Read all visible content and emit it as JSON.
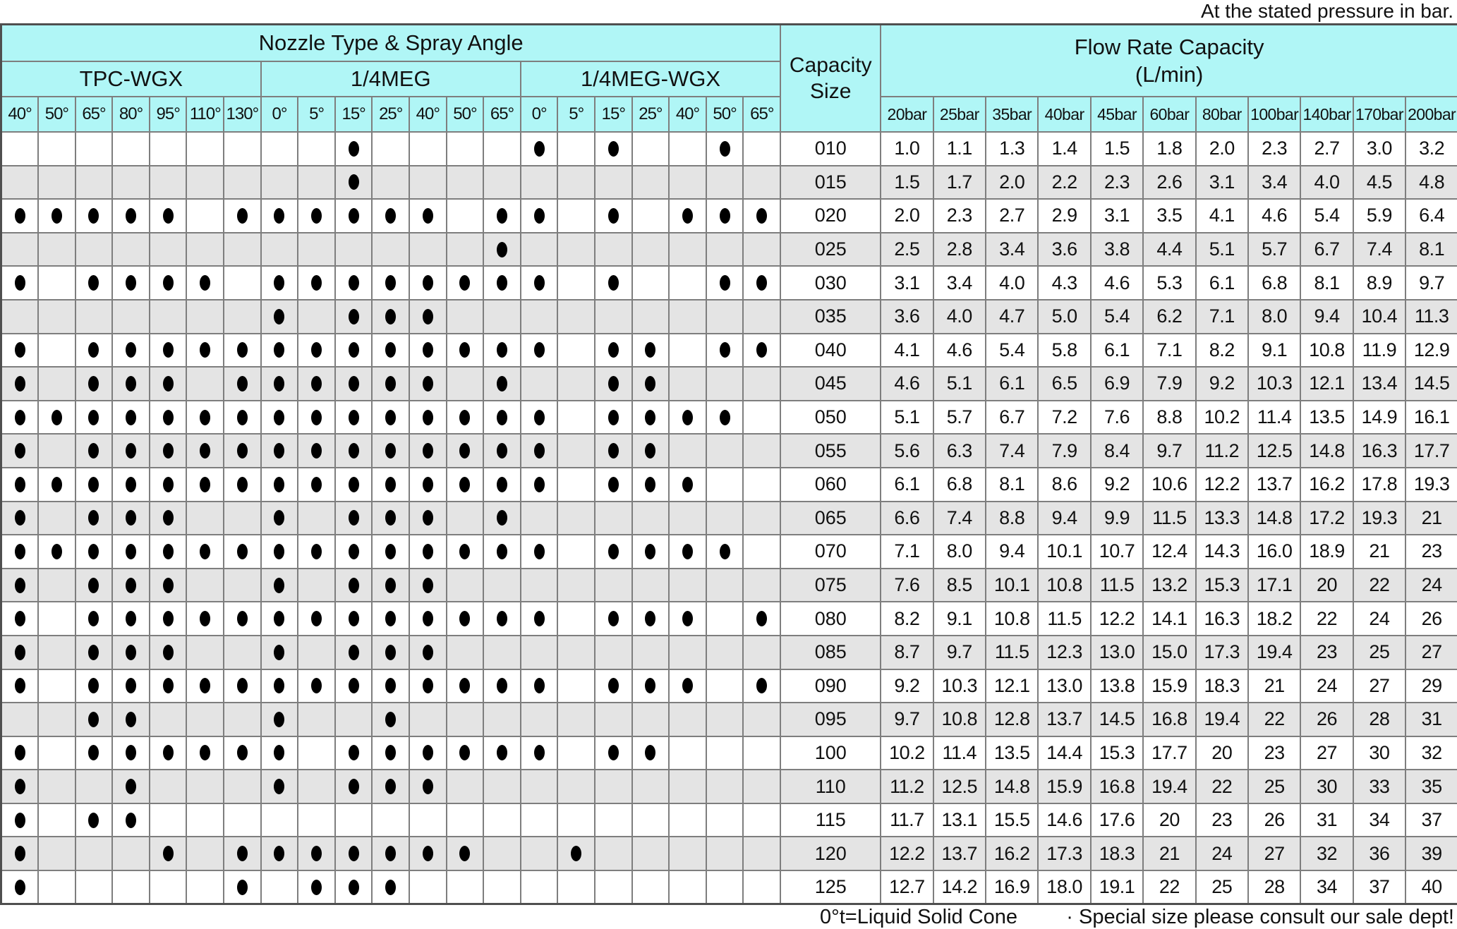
{
  "notes": {
    "top": "At the stated pressure in bar.",
    "left": "0°t=Liquid Solid Cone",
    "right": "· Special size please consult our sale dept!"
  },
  "colors": {
    "header_cyan": "#b0f6f6",
    "row_gray": "#e4e4e4",
    "row_white": "#ffffff",
    "grid_border": "#7e7e7e",
    "outer_border": "#4f4f4f",
    "dot_black": "#000000"
  },
  "table": {
    "nozzle_title": "Nozzle Type  & Spray Angle",
    "capacity_title_line1": "Capacity",
    "capacity_title_line2": "Size",
    "flow_title_line1": "Flow Rate Capacity",
    "flow_title_line2": "(L/min)",
    "groups": [
      {
        "label": "TPC-WGX",
        "angles": [
          "40°",
          "50°",
          "65°",
          "80°",
          "95°",
          "110°",
          "130°"
        ]
      },
      {
        "label": "1/4MEG",
        "angles": [
          "0°",
          "5°",
          "15°",
          "25°",
          "40°",
          "50°",
          "65°"
        ]
      },
      {
        "label": "1/4MEG-WGX",
        "angles": [
          "0°",
          "5°",
          "15°",
          "25°",
          "40°",
          "50°",
          "65°"
        ]
      }
    ],
    "pressures": [
      "20bar",
      "25bar",
      "35bar",
      "40bar",
      "45bar",
      "60bar",
      "80bar",
      "100bar",
      "140bar",
      "170bar",
      "200bar"
    ],
    "rows": [
      {
        "size": "010",
        "dots": [
          0,
          0,
          0,
          0,
          0,
          0,
          0,
          0,
          0,
          1,
          0,
          0,
          0,
          0,
          1,
          0,
          1,
          0,
          0,
          1,
          0
        ],
        "flows": [
          "1.0",
          "1.1",
          "1.3",
          "1.4",
          "1.5",
          "1.8",
          "2.0",
          "2.3",
          "2.7",
          "3.0",
          "3.2"
        ]
      },
      {
        "size": "015",
        "dots": [
          0,
          0,
          0,
          0,
          0,
          0,
          0,
          0,
          0,
          1,
          0,
          0,
          0,
          0,
          0,
          0,
          0,
          0,
          0,
          0,
          0
        ],
        "flows": [
          "1.5",
          "1.7",
          "2.0",
          "2.2",
          "2.3",
          "2.6",
          "3.1",
          "3.4",
          "4.0",
          "4.5",
          "4.8"
        ]
      },
      {
        "size": "020",
        "dots": [
          1,
          1,
          1,
          1,
          1,
          0,
          1,
          1,
          1,
          1,
          1,
          1,
          0,
          1,
          1,
          0,
          1,
          0,
          1,
          1,
          1
        ],
        "flows": [
          "2.0",
          "2.3",
          "2.7",
          "2.9",
          "3.1",
          "3.5",
          "4.1",
          "4.6",
          "5.4",
          "5.9",
          "6.4"
        ]
      },
      {
        "size": "025",
        "dots": [
          0,
          0,
          0,
          0,
          0,
          0,
          0,
          0,
          0,
          0,
          0,
          0,
          0,
          1,
          0,
          0,
          0,
          0,
          0,
          0,
          0
        ],
        "flows": [
          "2.5",
          "2.8",
          "3.4",
          "3.6",
          "3.8",
          "4.4",
          "5.1",
          "5.7",
          "6.7",
          "7.4",
          "8.1"
        ]
      },
      {
        "size": "030",
        "dots": [
          1,
          0,
          1,
          1,
          1,
          1,
          0,
          1,
          1,
          1,
          1,
          1,
          1,
          1,
          1,
          0,
          1,
          0,
          0,
          1,
          1
        ],
        "flows": [
          "3.1",
          "3.4",
          "4.0",
          "4.3",
          "4.6",
          "5.3",
          "6.1",
          "6.8",
          "8.1",
          "8.9",
          "9.7"
        ]
      },
      {
        "size": "035",
        "dots": [
          0,
          0,
          0,
          0,
          0,
          0,
          0,
          1,
          0,
          1,
          1,
          1,
          0,
          0,
          0,
          0,
          0,
          0,
          0,
          0,
          0
        ],
        "flows": [
          "3.6",
          "4.0",
          "4.7",
          "5.0",
          "5.4",
          "6.2",
          "7.1",
          "8.0",
          "9.4",
          "10.4",
          "11.3"
        ]
      },
      {
        "size": "040",
        "dots": [
          1,
          0,
          1,
          1,
          1,
          1,
          1,
          1,
          1,
          1,
          1,
          1,
          1,
          1,
          1,
          0,
          1,
          1,
          0,
          1,
          1
        ],
        "flows": [
          "4.1",
          "4.6",
          "5.4",
          "5.8",
          "6.1",
          "7.1",
          "8.2",
          "9.1",
          "10.8",
          "11.9",
          "12.9"
        ]
      },
      {
        "size": "045",
        "dots": [
          1,
          0,
          1,
          1,
          1,
          0,
          1,
          1,
          1,
          1,
          1,
          1,
          0,
          1,
          0,
          0,
          1,
          1,
          0,
          0,
          0
        ],
        "flows": [
          "4.6",
          "5.1",
          "6.1",
          "6.5",
          "6.9",
          "7.9",
          "9.2",
          "10.3",
          "12.1",
          "13.4",
          "14.5"
        ]
      },
      {
        "size": "050",
        "dots": [
          1,
          1,
          1,
          1,
          1,
          1,
          1,
          1,
          1,
          1,
          1,
          1,
          1,
          1,
          1,
          0,
          1,
          1,
          1,
          1,
          0
        ],
        "flows": [
          "5.1",
          "5.7",
          "6.7",
          "7.2",
          "7.6",
          "8.8",
          "10.2",
          "11.4",
          "13.5",
          "14.9",
          "16.1"
        ]
      },
      {
        "size": "055",
        "dots": [
          1,
          0,
          1,
          1,
          1,
          1,
          1,
          1,
          1,
          1,
          1,
          1,
          1,
          1,
          1,
          0,
          1,
          1,
          0,
          0,
          0
        ],
        "flows": [
          "5.6",
          "6.3",
          "7.4",
          "7.9",
          "8.4",
          "9.7",
          "11.2",
          "12.5",
          "14.8",
          "16.3",
          "17.7"
        ]
      },
      {
        "size": "060",
        "dots": [
          1,
          1,
          1,
          1,
          1,
          1,
          1,
          1,
          1,
          1,
          1,
          1,
          1,
          1,
          1,
          0,
          1,
          1,
          1,
          0,
          0
        ],
        "flows": [
          "6.1",
          "6.8",
          "8.1",
          "8.6",
          "9.2",
          "10.6",
          "12.2",
          "13.7",
          "16.2",
          "17.8",
          "19.3"
        ]
      },
      {
        "size": "065",
        "dots": [
          1,
          0,
          1,
          1,
          1,
          0,
          0,
          1,
          0,
          1,
          1,
          1,
          0,
          1,
          0,
          0,
          0,
          0,
          0,
          0,
          0
        ],
        "flows": [
          "6.6",
          "7.4",
          "8.8",
          "9.4",
          "9.9",
          "11.5",
          "13.3",
          "14.8",
          "17.2",
          "19.3",
          "21"
        ]
      },
      {
        "size": "070",
        "dots": [
          1,
          1,
          1,
          1,
          1,
          1,
          1,
          1,
          1,
          1,
          1,
          1,
          1,
          1,
          1,
          0,
          1,
          1,
          1,
          1,
          0
        ],
        "flows": [
          "7.1",
          "8.0",
          "9.4",
          "10.1",
          "10.7",
          "12.4",
          "14.3",
          "16.0",
          "18.9",
          "21",
          "23"
        ]
      },
      {
        "size": "075",
        "dots": [
          1,
          0,
          1,
          1,
          1,
          0,
          0,
          1,
          0,
          1,
          1,
          1,
          0,
          0,
          0,
          0,
          0,
          0,
          0,
          0,
          0
        ],
        "flows": [
          "7.6",
          "8.5",
          "10.1",
          "10.8",
          "11.5",
          "13.2",
          "15.3",
          "17.1",
          "20",
          "22",
          "24"
        ]
      },
      {
        "size": "080",
        "dots": [
          1,
          0,
          1,
          1,
          1,
          1,
          1,
          1,
          1,
          1,
          1,
          1,
          1,
          1,
          1,
          0,
          1,
          1,
          1,
          0,
          1
        ],
        "flows": [
          "8.2",
          "9.1",
          "10.8",
          "11.5",
          "12.2",
          "14.1",
          "16.3",
          "18.2",
          "22",
          "24",
          "26"
        ]
      },
      {
        "size": "085",
        "dots": [
          1,
          0,
          1,
          1,
          1,
          0,
          0,
          1,
          0,
          1,
          1,
          1,
          0,
          0,
          0,
          0,
          0,
          0,
          0,
          0,
          0
        ],
        "flows": [
          "8.7",
          "9.7",
          "11.5",
          "12.3",
          "13.0",
          "15.0",
          "17.3",
          "19.4",
          "23",
          "25",
          "27"
        ]
      },
      {
        "size": "090",
        "dots": [
          1,
          0,
          1,
          1,
          1,
          1,
          1,
          1,
          1,
          1,
          1,
          1,
          1,
          1,
          1,
          0,
          1,
          1,
          1,
          0,
          1
        ],
        "flows": [
          "9.2",
          "10.3",
          "12.1",
          "13.0",
          "13.8",
          "15.9",
          "18.3",
          "21",
          "24",
          "27",
          "29"
        ]
      },
      {
        "size": "095",
        "dots": [
          0,
          0,
          1,
          1,
          0,
          0,
          0,
          1,
          0,
          0,
          1,
          0,
          0,
          0,
          0,
          0,
          0,
          0,
          0,
          0,
          0
        ],
        "flows": [
          "9.7",
          "10.8",
          "12.8",
          "13.7",
          "14.5",
          "16.8",
          "19.4",
          "22",
          "26",
          "28",
          "31"
        ]
      },
      {
        "size": "100",
        "dots": [
          1,
          0,
          1,
          1,
          1,
          1,
          1,
          1,
          0,
          1,
          1,
          1,
          1,
          1,
          1,
          0,
          1,
          1,
          0,
          0,
          0
        ],
        "flows": [
          "10.2",
          "11.4",
          "13.5",
          "14.4",
          "15.3",
          "17.7",
          "20",
          "23",
          "27",
          "30",
          "32"
        ]
      },
      {
        "size": "110",
        "dots": [
          1,
          0,
          0,
          1,
          0,
          0,
          0,
          1,
          0,
          1,
          1,
          1,
          0,
          0,
          0,
          0,
          0,
          0,
          0,
          0,
          0
        ],
        "flows": [
          "11.2",
          "12.5",
          "14.8",
          "15.9",
          "16.8",
          "19.4",
          "22",
          "25",
          "30",
          "33",
          "35"
        ]
      },
      {
        "size": "115",
        "dots": [
          1,
          0,
          1,
          1,
          0,
          0,
          0,
          0,
          0,
          0,
          0,
          0,
          0,
          0,
          0,
          0,
          0,
          0,
          0,
          0,
          0
        ],
        "flows": [
          "11.7",
          "13.1",
          "15.5",
          "14.6",
          "17.6",
          "20",
          "23",
          "26",
          "31",
          "34",
          "37"
        ]
      },
      {
        "size": "120",
        "dots": [
          1,
          0,
          0,
          0,
          1,
          0,
          1,
          1,
          1,
          1,
          1,
          1,
          1,
          0,
          0,
          1,
          0,
          0,
          0,
          0,
          0
        ],
        "flows": [
          "12.2",
          "13.7",
          "16.2",
          "17.3",
          "18.3",
          "21",
          "24",
          "27",
          "32",
          "36",
          "39"
        ]
      },
      {
        "size": "125",
        "dots": [
          1,
          0,
          0,
          0,
          0,
          0,
          1,
          0,
          1,
          1,
          1,
          0,
          0,
          0,
          0,
          0,
          0,
          0,
          0,
          0,
          0
        ],
        "flows": [
          "12.7",
          "14.2",
          "16.9",
          "18.0",
          "19.1",
          "22",
          "25",
          "28",
          "34",
          "37",
          "40"
        ]
      }
    ]
  }
}
